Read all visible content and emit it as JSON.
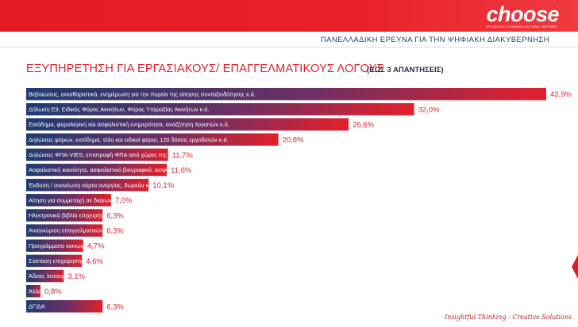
{
  "brand": {
    "logo": "choose",
    "tagline": "STRATEGIC COMMUNICATIONS PARTNER"
  },
  "header": {
    "survey": "ΠΑΝΕΛΛΑΔΙΚΗ ΕΡΕΥΝΑ ΓΙΑ ΤΗΝ ΨΗΦΙΑΚΗ ΔΙΑΚΥΒΕΡΝΗΣΗ"
  },
  "footer": {
    "slogan": "Insightful Thinking - Creative Solutions"
  },
  "colors": {
    "brand_red": "#e31b23",
    "bar_start": "#1f3b73",
    "bar_end": "#e3202a",
    "title": "#e3202a"
  },
  "chart_data": {
    "type": "bar",
    "orientation": "horizontal",
    "title": "ΕΞΥΠΗΡΕΤΗΣΗ ΓΙΑ ΕΡΓΑΣΙΑΚΟΥΣ/ ΕΠΑΓΓΕΛΜΑΤΙΚΟΥΣ ΛΟΓΟΥΣ",
    "subtitle": "(ΕΩΣ 3 ΑΠΑΝΤΗΣΕΙΣ)",
    "unit": "%",
    "xlim": [
      0,
      42.9
    ],
    "grid": false,
    "categories": [
      "Βεβαιώσεις, εκκαθαριστικά, ενημέρωση για την πορεία της αίτησης συνταξιοδότησης κ.ά.",
      "Δήλωση Ε9, Ειδικός Φόρος Ακινήτων, Φόρος Υπεραξίας Ακινήτων κ.ά.",
      "Εισόδημα, φορολογική και ασφαλιστική ενημερότητα, αναζήτηση λογιστών κ.ά.",
      "Δηλώσεις φόρων, εισόδημα, τέλη και ειδικοί φόροι, 120 δόσεις εργοδοτών κ.ά.",
      "Δηλώσεις ΦΠΑ-VIES, επιστροφή ΦΠΑ από χώρες της ΕΕ, ειδικό καθεστώς άρθρου 39Β κ.ά.",
      "Ασφαλιστική ικανότητα, ασφαλιστικό βιογραφικό, εισφορές μισθωτών / μη μισθωτών κ.ά.",
      "Έκδοση / ανανέωση κάρτα ανεργίας, δωρεάν κόμιστρο ΑΤΗ.ΕΝΑ card, προγράμματα κατάρτισης, κ.ά.",
      "Αίτηση για συμμετοχή σε διαγωνισμό, αποτελέσματα, ένσταση κ.ά.",
      "Ηλεκτρονικά βιβλία επιχειρήσεων, ανάγνωση κλειδάριθμου επιχείρησης (e-ΥΜΣ) κ.ά.",
      "Αναγνώριση επαγγελματικών προσόντων κ.ά.",
      "Προγράμματα κοινωφελούς χαρακτήρα / κοινωνικού - κατασκηνωτικού τουρισμού, παροχές μητρότητας κ.ά.",
      "Σύσταση επιχείρησης, γνωστοποίηση έναρξης επιχειρηματικής δραστηριότητας κ.ά.",
      "Άδειες λειτουργίας / κατασκευών, οικοδομικές άδειες, εμπορικά σήματα, επαγγελματικά μητρώα κ.ά.",
      "Άλλο τι;",
      "ΔΓ/ΔΑ"
    ],
    "values": [
      42.9,
      32.0,
      26.6,
      20.8,
      11.7,
      11.6,
      10.1,
      7.0,
      6.3,
      6.3,
      4.7,
      4.6,
      3.1,
      0.8,
      6.3
    ],
    "value_labels": [
      "42,9%",
      "32,0%",
      "26,6%",
      "20,8%",
      "11,7%",
      "11,6%",
      "10,1%",
      "7,0%",
      "6,3%",
      "6,3%",
      "4,7%",
      "4,6%",
      "3,1%",
      "0,8%",
      "6,3%"
    ]
  }
}
